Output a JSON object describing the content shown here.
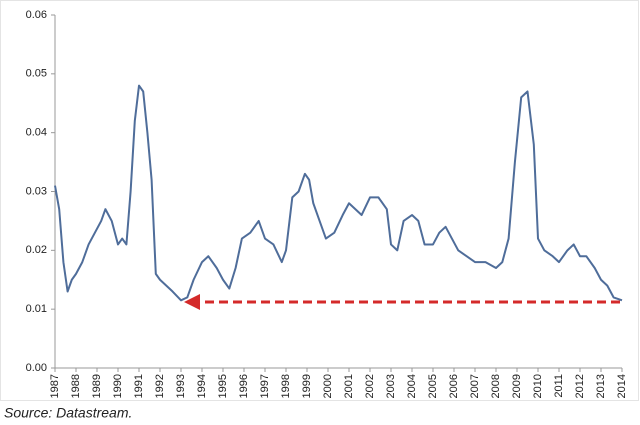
{
  "chart_data": {
    "type": "line",
    "source": "Source: Datastream.",
    "xlim": [
      1987,
      2014
    ],
    "xticks": [
      1987,
      1988,
      1989,
      1990,
      1991,
      1992,
      1993,
      1994,
      1995,
      1996,
      1997,
      1998,
      1999,
      2000,
      2001,
      2002,
      2003,
      2004,
      2005,
      2006,
      2007,
      2008,
      2009,
      2010,
      2011,
      2012,
      2013,
      2014
    ],
    "ylim": [
      0,
      0.06
    ],
    "yticks": [
      {
        "value": 0,
        "label": "0.00"
      },
      0.01,
      0.02,
      0.03,
      0.04,
      0.05,
      0.06
    ],
    "grid": false,
    "series": [
      {
        "color": "#4f6d9a",
        "x": [
          1987.0,
          1987.2,
          1987.4,
          1987.6,
          1987.8,
          1988.0,
          1988.3,
          1988.6,
          1988.9,
          1989.2,
          1989.4,
          1989.7,
          1990.0,
          1990.2,
          1990.4,
          1990.6,
          1990.8,
          1991.0,
          1991.2,
          1991.4,
          1991.6,
          1991.8,
          1992.0,
          1992.3,
          1992.6,
          1993.0,
          1993.3,
          1993.6,
          1994.0,
          1994.3,
          1994.7,
          1995.0,
          1995.3,
          1995.6,
          1995.9,
          1996.3,
          1996.7,
          1997.0,
          1997.4,
          1997.8,
          1998.0,
          1998.3,
          1998.6,
          1998.9,
          1999.1,
          1999.3,
          1999.6,
          1999.9,
          2000.3,
          2000.7,
          2001.0,
          2001.3,
          2001.6,
          2002.0,
          2002.4,
          2002.8,
          2003.0,
          2003.3,
          2003.6,
          2004.0,
          2004.3,
          2004.6,
          2005.0,
          2005.3,
          2005.6,
          2005.9,
          2006.2,
          2006.6,
          2007.0,
          2007.5,
          2008.0,
          2008.3,
          2008.6,
          2008.9,
          2009.2,
          2009.5,
          2009.8,
          2010.0,
          2010.3,
          2010.7,
          2011.0,
          2011.4,
          2011.7,
          2012.0,
          2012.3,
          2012.7,
          2013.0,
          2013.3,
          2013.6,
          2014.0
        ],
        "values": [
          0.031,
          0.027,
          0.018,
          0.013,
          0.015,
          0.016,
          0.018,
          0.021,
          0.023,
          0.025,
          0.027,
          0.025,
          0.021,
          0.022,
          0.021,
          0.03,
          0.042,
          0.048,
          0.047,
          0.04,
          0.032,
          0.016,
          0.015,
          0.014,
          0.013,
          0.0115,
          0.012,
          0.015,
          0.018,
          0.019,
          0.017,
          0.015,
          0.0135,
          0.017,
          0.022,
          0.023,
          0.025,
          0.022,
          0.021,
          0.018,
          0.02,
          0.029,
          0.03,
          0.033,
          0.032,
          0.028,
          0.025,
          0.022,
          0.023,
          0.026,
          0.028,
          0.027,
          0.026,
          0.029,
          0.029,
          0.027,
          0.021,
          0.02,
          0.025,
          0.026,
          0.025,
          0.021,
          0.021,
          0.023,
          0.024,
          0.022,
          0.02,
          0.019,
          0.018,
          0.018,
          0.017,
          0.018,
          0.022,
          0.035,
          0.046,
          0.047,
          0.038,
          0.022,
          0.02,
          0.019,
          0.018,
          0.02,
          0.021,
          0.019,
          0.019,
          0.017,
          0.015,
          0.014,
          0.012,
          0.0115
        ]
      }
    ]
  }
}
